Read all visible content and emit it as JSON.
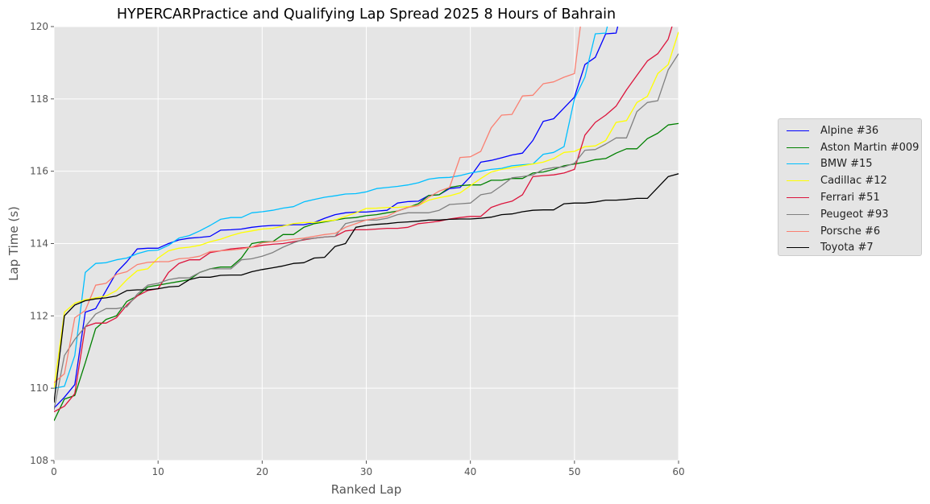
{
  "chart_data": {
    "type": "line",
    "title": "HYPERCARPractice and Qualifying Lap Spread 2025 8 Hours of Bahrain",
    "xlabel": "Ranked Lap",
    "ylabel": "Lap Time (s)",
    "xlim": [
      0,
      60
    ],
    "ylim": [
      108,
      120
    ],
    "xticks": [
      0,
      10,
      20,
      30,
      40,
      50,
      60
    ],
    "yticks": [
      108,
      110,
      112,
      114,
      116,
      118,
      120
    ],
    "grid": true,
    "legend_position": "right, outside plot",
    "series": [
      {
        "name": "Alpine #36",
        "color": "#0000ff",
        "x": [
          0,
          1,
          2,
          3,
          4,
          5,
          6,
          7,
          8,
          9,
          10,
          11,
          12,
          13,
          14,
          15,
          16,
          17,
          18,
          19,
          20,
          21,
          22,
          23,
          24,
          25,
          26,
          27,
          28,
          29,
          30,
          31,
          32,
          33,
          34,
          35,
          36,
          37,
          38,
          39,
          40,
          41,
          42,
          43,
          44,
          45,
          46,
          47,
          48,
          49,
          50,
          51,
          52,
          53,
          54,
          55
        ],
        "y": [
          109.45,
          109.75,
          110.1,
          112.1,
          112.2,
          112.7,
          113.2,
          113.5,
          113.85,
          113.87,
          113.87,
          114.0,
          114.1,
          114.15,
          114.17,
          114.2,
          114.37,
          114.38,
          114.4,
          114.45,
          114.48,
          114.5,
          114.5,
          114.52,
          114.52,
          114.58,
          114.7,
          114.8,
          114.85,
          114.87,
          114.87,
          114.9,
          114.92,
          115.12,
          115.16,
          115.17,
          115.33,
          115.35,
          115.52,
          115.55,
          115.85,
          116.25,
          116.3,
          116.37,
          116.45,
          116.5,
          116.85,
          117.38,
          117.45,
          117.75,
          118.05,
          118.95,
          119.15,
          119.8,
          119.82,
          121.0
        ]
      },
      {
        "name": "Aston Martin #009",
        "color": "#008000",
        "x": [
          0,
          1,
          2,
          3,
          4,
          5,
          6,
          7,
          8,
          9,
          10,
          11,
          12,
          13,
          14,
          15,
          16,
          17,
          18,
          19,
          20,
          21,
          22,
          23,
          24,
          25,
          26,
          27,
          28,
          29,
          30,
          31,
          32,
          33,
          34,
          35,
          36,
          37,
          38,
          39,
          40,
          41,
          42,
          43,
          44,
          45,
          46,
          47,
          48,
          49,
          50,
          51,
          52,
          53,
          54,
          55,
          56,
          57,
          58,
          59,
          60
        ],
        "y": [
          109.1,
          109.7,
          109.8,
          110.7,
          111.65,
          111.9,
          112.0,
          112.4,
          112.55,
          112.8,
          112.85,
          112.9,
          112.95,
          113.0,
          113.2,
          113.3,
          113.35,
          113.35,
          113.6,
          114.0,
          114.05,
          114.05,
          114.25,
          114.25,
          114.45,
          114.55,
          114.6,
          114.65,
          114.7,
          114.72,
          114.77,
          114.8,
          114.85,
          114.9,
          115.0,
          115.1,
          115.33,
          115.35,
          115.55,
          115.6,
          115.62,
          115.62,
          115.75,
          115.75,
          115.8,
          115.8,
          115.95,
          115.98,
          116.05,
          116.15,
          116.2,
          116.25,
          116.32,
          116.35,
          116.5,
          116.62,
          116.62,
          116.9,
          117.05,
          117.28,
          117.32
        ]
      },
      {
        "name": "BMW #15",
        "color": "#00bfff",
        "x": [
          0,
          1,
          2,
          3,
          4,
          5,
          6,
          7,
          8,
          9,
          10,
          11,
          12,
          13,
          14,
          15,
          16,
          17,
          18,
          19,
          20,
          21,
          22,
          23,
          24,
          25,
          26,
          27,
          28,
          29,
          30,
          31,
          32,
          33,
          34,
          35,
          36,
          37,
          38,
          39,
          40,
          41,
          42,
          43,
          44,
          45,
          46,
          47,
          48,
          49,
          50,
          51,
          52,
          53,
          54
        ],
        "y": [
          110.0,
          110.05,
          110.9,
          113.2,
          113.45,
          113.47,
          113.55,
          113.6,
          113.72,
          113.8,
          113.82,
          113.95,
          114.15,
          114.22,
          114.35,
          114.5,
          114.67,
          114.72,
          114.72,
          114.85,
          114.88,
          114.92,
          114.98,
          115.02,
          115.15,
          115.22,
          115.28,
          115.32,
          115.37,
          115.38,
          115.43,
          115.52,
          115.55,
          115.58,
          115.62,
          115.68,
          115.78,
          115.82,
          115.83,
          115.88,
          115.95,
          116.0,
          116.05,
          116.08,
          116.15,
          116.18,
          116.2,
          116.47,
          116.52,
          116.68,
          118.0,
          118.6,
          119.8,
          119.82,
          121.0
        ]
      },
      {
        "name": "Cadillac #12",
        "color": "#ffff00",
        "x": [
          0,
          1,
          2,
          3,
          4,
          5,
          6,
          7,
          8,
          9,
          10,
          11,
          12,
          13,
          14,
          15,
          16,
          17,
          18,
          19,
          20,
          21,
          22,
          23,
          24,
          25,
          26,
          27,
          28,
          29,
          30,
          31,
          32,
          33,
          34,
          35,
          36,
          37,
          38,
          39,
          40,
          41,
          42,
          43,
          44,
          45,
          46,
          47,
          48,
          49,
          50,
          51,
          52,
          53,
          54,
          55,
          56,
          57,
          58,
          59,
          60
        ],
        "y": [
          110.0,
          112.1,
          112.35,
          112.45,
          112.5,
          112.55,
          112.7,
          113.0,
          113.25,
          113.3,
          113.6,
          113.8,
          113.87,
          113.9,
          113.95,
          114.05,
          114.12,
          114.22,
          114.3,
          114.35,
          114.4,
          114.42,
          114.48,
          114.55,
          114.58,
          114.58,
          114.62,
          114.65,
          114.75,
          114.85,
          114.97,
          114.98,
          115.0,
          115.0,
          115.02,
          115.05,
          115.2,
          115.27,
          115.32,
          115.4,
          115.6,
          115.8,
          115.98,
          116.05,
          116.1,
          116.15,
          116.2,
          116.25,
          116.35,
          116.52,
          116.55,
          116.68,
          116.7,
          116.85,
          117.35,
          117.4,
          117.9,
          118.07,
          118.7,
          118.95,
          119.85
        ]
      },
      {
        "name": "Ferrari #51",
        "color": "#dc143c",
        "x": [
          0,
          1,
          2,
          3,
          4,
          5,
          6,
          7,
          8,
          9,
          10,
          11,
          12,
          13,
          14,
          15,
          16,
          17,
          18,
          19,
          20,
          21,
          22,
          23,
          24,
          25,
          26,
          27,
          28,
          29,
          30,
          31,
          32,
          33,
          34,
          35,
          36,
          37,
          38,
          39,
          40,
          41,
          42,
          43,
          44,
          45,
          46,
          47,
          48,
          49,
          50,
          51,
          52,
          53,
          54,
          55,
          56,
          57,
          58,
          59,
          60
        ],
        "y": [
          109.35,
          109.5,
          109.85,
          111.7,
          111.8,
          111.8,
          111.95,
          112.3,
          112.55,
          112.7,
          112.75,
          113.2,
          113.45,
          113.55,
          113.55,
          113.75,
          113.8,
          113.85,
          113.88,
          113.9,
          113.95,
          113.98,
          114.0,
          114.05,
          114.1,
          114.15,
          114.18,
          114.2,
          114.35,
          114.38,
          114.38,
          114.4,
          114.42,
          114.42,
          114.45,
          114.55,
          114.58,
          114.62,
          114.68,
          114.72,
          114.75,
          114.75,
          115.0,
          115.1,
          115.17,
          115.35,
          115.85,
          115.88,
          115.9,
          115.95,
          116.05,
          117.0,
          117.35,
          117.55,
          117.8,
          118.25,
          118.65,
          119.05,
          119.25,
          119.65,
          120.6
        ]
      },
      {
        "name": "Peugeot #93",
        "color": "#808080",
        "x": [
          0,
          1,
          2,
          3,
          4,
          5,
          6,
          7,
          8,
          9,
          10,
          11,
          12,
          13,
          14,
          15,
          16,
          17,
          18,
          19,
          20,
          21,
          22,
          23,
          24,
          25,
          26,
          27,
          28,
          29,
          30,
          31,
          32,
          33,
          34,
          35,
          36,
          37,
          38,
          39,
          40,
          41,
          42,
          43,
          44,
          45,
          46,
          47,
          48,
          49,
          50,
          51,
          52,
          53,
          54,
          55,
          56,
          57,
          58,
          59,
          60
        ],
        "y": [
          109.4,
          110.9,
          111.35,
          111.7,
          112.05,
          112.2,
          112.2,
          112.25,
          112.6,
          112.85,
          112.9,
          113.0,
          113.05,
          113.05,
          113.2,
          113.3,
          113.3,
          113.3,
          113.55,
          113.58,
          113.65,
          113.75,
          113.9,
          114.02,
          114.12,
          114.15,
          114.18,
          114.2,
          114.55,
          114.62,
          114.65,
          114.65,
          114.7,
          114.8,
          114.85,
          114.85,
          114.85,
          114.92,
          115.08,
          115.1,
          115.12,
          115.35,
          115.4,
          115.6,
          115.82,
          115.85,
          115.9,
          116.05,
          116.1,
          116.12,
          116.22,
          116.58,
          116.6,
          116.75,
          116.92,
          116.92,
          117.65,
          117.9,
          117.95,
          118.8,
          119.25
        ]
      },
      {
        "name": "Porsche #6",
        "color": "#fa8072",
        "x": [
          0,
          1,
          2,
          3,
          4,
          5,
          6,
          7,
          8,
          9,
          10,
          11,
          12,
          13,
          14,
          15,
          16,
          17,
          18,
          19,
          20,
          21,
          22,
          23,
          24,
          25,
          26,
          27,
          28,
          29,
          30,
          31,
          32,
          33,
          34,
          35,
          36,
          37,
          38,
          39,
          40,
          41,
          42,
          43,
          44,
          45,
          46,
          47,
          48,
          49,
          50,
          51
        ],
        "y": [
          110.15,
          110.4,
          111.95,
          112.15,
          112.85,
          112.9,
          113.15,
          113.22,
          113.42,
          113.48,
          113.5,
          113.5,
          113.58,
          113.6,
          113.65,
          113.78,
          113.8,
          113.82,
          113.85,
          113.9,
          114.02,
          114.05,
          114.08,
          114.12,
          114.15,
          114.2,
          114.25,
          114.28,
          114.45,
          114.55,
          114.65,
          114.7,
          114.75,
          114.9,
          115.0,
          115.05,
          115.28,
          115.45,
          115.55,
          116.38,
          116.4,
          116.55,
          117.2,
          117.55,
          117.57,
          118.08,
          118.1,
          118.42,
          118.47,
          118.6,
          118.7,
          121.0
        ]
      },
      {
        "name": "Toyota #7",
        "color": "#000000",
        "x": [
          0,
          1,
          2,
          3,
          4,
          5,
          6,
          7,
          8,
          9,
          10,
          11,
          12,
          13,
          14,
          15,
          16,
          17,
          18,
          19,
          20,
          21,
          22,
          23,
          24,
          25,
          26,
          27,
          28,
          29,
          30,
          31,
          32,
          33,
          34,
          35,
          36,
          37,
          38,
          39,
          40,
          41,
          42,
          43,
          44,
          45,
          46,
          47,
          48,
          49,
          50,
          51,
          52,
          53,
          54,
          55,
          56,
          57,
          58,
          59,
          60
        ],
        "y": [
          109.6,
          112.0,
          112.3,
          112.42,
          112.47,
          112.5,
          112.55,
          112.7,
          112.72,
          112.72,
          112.75,
          112.8,
          112.82,
          113.0,
          113.07,
          113.07,
          113.12,
          113.13,
          113.13,
          113.22,
          113.28,
          113.33,
          113.38,
          113.45,
          113.47,
          113.6,
          113.62,
          113.92,
          114.0,
          114.45,
          114.5,
          114.53,
          114.55,
          114.58,
          114.6,
          114.62,
          114.65,
          114.65,
          114.67,
          114.68,
          114.68,
          114.7,
          114.73,
          114.8,
          114.82,
          114.88,
          114.92,
          114.93,
          114.93,
          115.1,
          115.12,
          115.12,
          115.15,
          115.2,
          115.2,
          115.22,
          115.25,
          115.25,
          115.55,
          115.85,
          115.93
        ]
      }
    ]
  }
}
